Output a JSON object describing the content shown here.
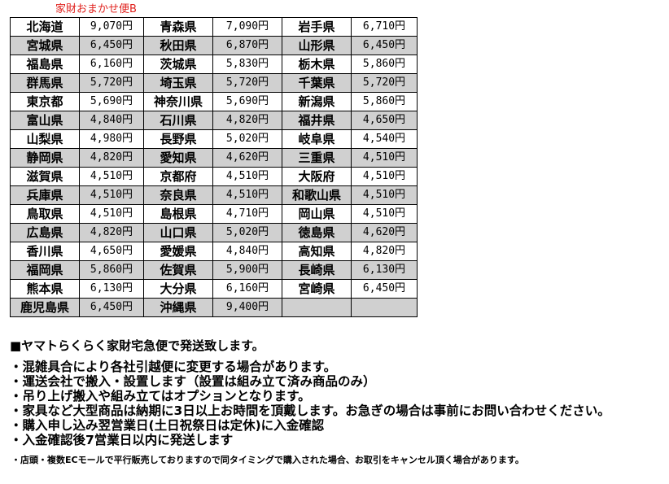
{
  "caption": "家財おまかせ便B",
  "rows": [
    [
      [
        "北海道",
        "9,070円"
      ],
      [
        "青森県",
        "7,090円"
      ],
      [
        "岩手県",
        "6,710円"
      ]
    ],
    [
      [
        "宮城県",
        "6,450円"
      ],
      [
        "秋田県",
        "6,870円"
      ],
      [
        "山形県",
        "6,450円"
      ]
    ],
    [
      [
        "福島県",
        "6,160円"
      ],
      [
        "茨城県",
        "5,830円"
      ],
      [
        "栃木県",
        "5,860円"
      ]
    ],
    [
      [
        "群馬県",
        "5,720円"
      ],
      [
        "埼玉県",
        "5,720円"
      ],
      [
        "千葉県",
        "5,720円"
      ]
    ],
    [
      [
        "東京都",
        "5,690円"
      ],
      [
        "神奈川県",
        "5,690円"
      ],
      [
        "新潟県",
        "5,860円"
      ]
    ],
    [
      [
        "富山県",
        "4,840円"
      ],
      [
        "石川県",
        "4,820円"
      ],
      [
        "福井県",
        "4,650円"
      ]
    ],
    [
      [
        "山梨県",
        "4,980円"
      ],
      [
        "長野県",
        "5,020円"
      ],
      [
        "岐阜県",
        "4,540円"
      ]
    ],
    [
      [
        "静岡県",
        "4,820円"
      ],
      [
        "愛知県",
        "4,620円"
      ],
      [
        "三重県",
        "4,510円"
      ]
    ],
    [
      [
        "滋賀県",
        "4,510円"
      ],
      [
        "京都府",
        "4,510円"
      ],
      [
        "大阪府",
        "4,510円"
      ]
    ],
    [
      [
        "兵庫県",
        "4,510円"
      ],
      [
        "奈良県",
        "4,510円"
      ],
      [
        "和歌山県",
        "4,510円"
      ]
    ],
    [
      [
        "鳥取県",
        "4,510円"
      ],
      [
        "島根県",
        "4,710円"
      ],
      [
        "岡山県",
        "4,510円"
      ]
    ],
    [
      [
        "広島県",
        "4,820円"
      ],
      [
        "山口県",
        "5,020円"
      ],
      [
        "徳島県",
        "4,620円"
      ]
    ],
    [
      [
        "香川県",
        "4,650円"
      ],
      [
        "愛媛県",
        "4,840円"
      ],
      [
        "高知県",
        "4,820円"
      ]
    ],
    [
      [
        "福岡県",
        "5,860円"
      ],
      [
        "佐賀県",
        "5,900円"
      ],
      [
        "長崎県",
        "6,130円"
      ]
    ],
    [
      [
        "熊本県",
        "6,130円"
      ],
      [
        "大分県",
        "6,160円"
      ],
      [
        "宮崎県",
        "6,450円"
      ]
    ],
    [
      [
        "鹿児島県",
        "6,450円"
      ],
      [
        "沖縄県",
        "9,400円"
      ],
      [
        "",
        ""
      ]
    ]
  ],
  "notes": {
    "heading": "■ヤマトらくらく家財宅急便で発送致します。",
    "items": [
      "・混雑具合により各社引越便に変更する場合があります。",
      "・運送会社で搬入・設置します（設置は組み立て済み商品のみ）",
      "・吊り上げ搬入や組み立てはオプションとなります。",
      "・家具など大型商品は納期に3日以上お時間を頂戴します。お急ぎの場合は事前にお問い合わせください。",
      "・購入申し込み翌営業日(土日祝祭日は定休)に入金確認",
      "・入金確認後7営業日以内に発送します"
    ],
    "footnote": "・店頭・複数ECモールで平行販売しておりますので同タイミングで購入された場合、お取引をキャンセル頂く場合があります。"
  },
  "colors": {
    "caption": "#e0201c",
    "row_shade": "#d0d0d0"
  }
}
